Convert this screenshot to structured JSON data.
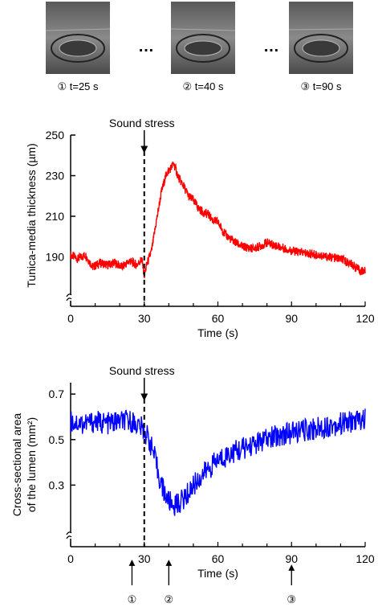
{
  "thumbnails": [
    {
      "label": "① t=25 s"
    },
    {
      "label": "② t=40 s"
    },
    {
      "label": "③ t=90 s"
    }
  ],
  "thumbnail_ellipsis": "…",
  "colors": {
    "thickness_line": "#ff0000",
    "area_line": "#0000ff",
    "axis": "#000000"
  },
  "chart_data": [
    {
      "type": "line",
      "title": "",
      "annotation": "Sound stress",
      "stress_time": 30,
      "xlabel": "Time (s)",
      "ylabel": "Tunica-media thickness (µm)",
      "xlim": [
        0,
        120
      ],
      "ylim": [
        170,
        250
      ],
      "x_ticks": [
        0,
        30,
        60,
        90,
        120
      ],
      "y_ticks": [
        190,
        210,
        230,
        250
      ],
      "axis_break": true,
      "grid": false,
      "series": [
        {
          "color": "#ff0000",
          "x": [
            0,
            3,
            6,
            9,
            12,
            15,
            18,
            21,
            24,
            27,
            29,
            30,
            31,
            33,
            35,
            37,
            39,
            41,
            42,
            44,
            46,
            48,
            50,
            52,
            54,
            56,
            58,
            60,
            63,
            66,
            70,
            75,
            80,
            85,
            90,
            95,
            100,
            105,
            110,
            115,
            118,
            120
          ],
          "values": [
            191,
            189,
            191,
            185,
            187,
            186,
            187,
            185,
            188,
            186,
            189,
            181,
            186,
            193,
            208,
            222,
            231,
            234,
            236,
            229,
            225,
            220,
            218,
            214,
            212,
            211,
            208,
            207,
            201,
            198,
            195,
            194,
            197,
            195,
            193,
            192,
            191,
            190,
            189,
            186,
            183,
            183
          ]
        }
      ]
    },
    {
      "type": "line",
      "title": "",
      "annotation": "Sound stress",
      "stress_time": 30,
      "xlabel": "Time (s)",
      "ylabel_line1": "Cross-sectional area",
      "ylabel_line2": "of the lumen (mm²)",
      "xlim": [
        0,
        120
      ],
      "ylim": [
        0.1,
        0.75
      ],
      "x_ticks": [
        0,
        30,
        60,
        90,
        120
      ],
      "y_ticks": [
        0.3,
        0.5,
        0.7
      ],
      "axis_break": true,
      "grid": false,
      "markers": [
        {
          "label": "①",
          "time": 25
        },
        {
          "label": "②",
          "time": 40
        },
        {
          "label": "③",
          "time": 90
        }
      ],
      "series": [
        {
          "color": "#0000ff",
          "x": [
            0,
            5,
            10,
            15,
            20,
            25,
            28,
            30,
            32,
            34,
            36,
            38,
            40,
            42,
            44,
            47,
            50,
            55,
            60,
            65,
            70,
            75,
            80,
            85,
            90,
            95,
            100,
            105,
            110,
            115,
            120
          ],
          "values": [
            0.58,
            0.57,
            0.58,
            0.57,
            0.58,
            0.58,
            0.56,
            0.54,
            0.5,
            0.43,
            0.34,
            0.27,
            0.23,
            0.21,
            0.22,
            0.25,
            0.3,
            0.36,
            0.41,
            0.44,
            0.46,
            0.48,
            0.5,
            0.52,
            0.53,
            0.54,
            0.55,
            0.56,
            0.57,
            0.58,
            0.59
          ]
        }
      ]
    }
  ]
}
